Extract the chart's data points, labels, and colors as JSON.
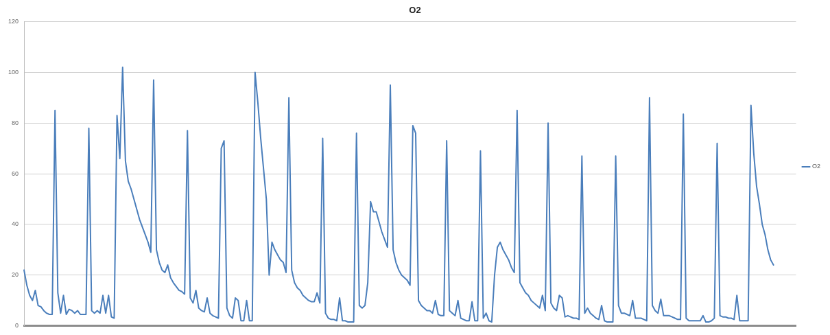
{
  "chart_data": {
    "type": "line",
    "title": "O2",
    "categories": [
      null,
      null,
      null,
      null,
      null,
      null,
      null,
      null,
      null,
      null,
      null,
      null,
      null,
      null,
      null,
      null,
      null,
      null,
      null,
      null,
      null,
      null,
      null,
      null,
      null,
      null,
      null,
      null,
      null,
      null,
      null,
      null,
      null,
      null,
      null,
      null,
      null,
      null,
      null,
      null,
      null,
      null,
      null,
      null,
      null,
      null,
      null,
      null,
      null,
      null,
      null,
      null,
      null,
      null,
      null,
      null,
      null,
      null,
      null,
      null,
      null,
      null,
      null,
      null,
      null,
      null,
      null,
      null,
      null,
      null,
      null,
      null,
      null,
      null,
      null,
      null,
      null,
      null,
      null,
      null,
      null,
      null,
      null,
      null,
      null,
      null,
      null,
      null,
      null,
      null,
      null,
      null,
      null,
      null,
      null,
      null,
      null,
      null,
      null,
      null,
      null,
      null,
      null,
      null,
      null,
      null,
      null,
      null,
      null,
      null,
      null,
      null,
      null,
      null,
      null,
      null,
      null,
      null,
      null,
      null,
      null,
      null,
      null,
      null,
      null,
      null,
      null,
      null,
      null,
      null,
      null,
      null,
      null,
      null,
      null,
      null,
      null,
      null,
      null,
      null,
      null,
      null,
      null,
      null,
      null,
      null,
      null,
      null,
      null,
      null,
      null,
      null,
      null,
      null,
      null,
      null,
      null,
      null,
      null,
      null,
      null,
      null,
      null,
      null,
      null,
      null,
      null,
      null,
      null,
      null,
      null,
      null,
      null,
      null,
      null,
      null,
      null,
      null,
      null,
      null,
      null,
      null,
      null,
      null,
      null,
      null,
      null,
      null,
      null,
      null,
      null,
      null,
      null,
      null,
      null,
      null,
      null,
      null,
      null,
      null,
      null,
      null,
      null,
      null,
      null,
      null,
      null,
      null,
      null,
      null,
      null,
      null,
      null,
      null,
      null,
      null,
      null,
      null,
      null,
      null,
      null,
      null,
      null,
      null,
      null,
      null,
      null,
      null,
      null,
      null,
      null,
      null,
      null,
      null,
      null,
      null,
      null,
      null,
      null,
      null,
      null,
      null,
      null,
      null,
      null,
      null,
      null,
      null,
      null,
      null,
      null,
      null,
      null,
      null,
      null,
      null,
      null,
      null,
      null,
      null,
      null,
      null,
      null,
      null,
      null,
      null,
      null,
      null,
      null,
      null,
      null,
      null,
      null,
      null,
      null
    ],
    "series": [
      {
        "name": "O2",
        "color": "#4a7ebb",
        "values": [
          22,
          16,
          12,
          10,
          14,
          8,
          7.5,
          6,
          5,
          4.5,
          4.5,
          85,
          13,
          5,
          12,
          4.5,
          6.5,
          6,
          5,
          6,
          4.5,
          4.5,
          4.5,
          78,
          6,
          5,
          6,
          5,
          12,
          5,
          12,
          3.5,
          3,
          83,
          66,
          102,
          65,
          57,
          54,
          50,
          46,
          42,
          39,
          36,
          33,
          29,
          97,
          30,
          25,
          22,
          21,
          24,
          19,
          17,
          15.5,
          14,
          13.5,
          12.5,
          77,
          11,
          9,
          14,
          7,
          6,
          5.5,
          11,
          5,
          4,
          3.5,
          3,
          70,
          73,
          7,
          4,
          3,
          11,
          10,
          2,
          2,
          10,
          2,
          2,
          100,
          88,
          74,
          62,
          50,
          20,
          33,
          30,
          28,
          26,
          25,
          21,
          90,
          22,
          17,
          15,
          14,
          12,
          11,
          10,
          9.5,
          9.5,
          13,
          9,
          74,
          5,
          3,
          2.5,
          2.5,
          2,
          11,
          2,
          2,
          1.5,
          1.5,
          1.5,
          76,
          8,
          7,
          8,
          17,
          49,
          45,
          45,
          41,
          37,
          34,
          31,
          95,
          30,
          25,
          22,
          20,
          19,
          18,
          16,
          79,
          76,
          10,
          8,
          7,
          6,
          6,
          5,
          10,
          4.5,
          4,
          4,
          73,
          6,
          5,
          4,
          10,
          3,
          2.5,
          2,
          2,
          9.5,
          2,
          2,
          69,
          3,
          5,
          2,
          1.5,
          20,
          31,
          33,
          30,
          28,
          26,
          23,
          21,
          85,
          17,
          15,
          13,
          12,
          10,
          9,
          8,
          7,
          12,
          6,
          80,
          9,
          7,
          6,
          12,
          11,
          3.5,
          4,
          3.5,
          3,
          3,
          2.5,
          67,
          5,
          7,
          5,
          4,
          3,
          2.5,
          8,
          2,
          1.5,
          1.5,
          1.5,
          67,
          8,
          5,
          5,
          4.5,
          4,
          10,
          3,
          3,
          3,
          2.5,
          2,
          90,
          8,
          6,
          5,
          10.5,
          4,
          4,
          4,
          3.5,
          3,
          2.5,
          2.5,
          83.5,
          3,
          2,
          2,
          2,
          2,
          2,
          4,
          1.5,
          1.5,
          2,
          3,
          72,
          4,
          3.5,
          3.5,
          3,
          3,
          2.5,
          12,
          2,
          2,
          2,
          2,
          87,
          68,
          55,
          48,
          40,
          36,
          30,
          26,
          24,
          null,
          null,
          null,
          null,
          null,
          null,
          null,
          null
        ]
      }
    ],
    "ylim": [
      0,
      120
    ],
    "yticks": [
      0,
      20,
      40,
      60,
      80,
      100,
      120
    ],
    "grid": "y",
    "legend": "right",
    "tick_labels": "y",
    "marker": "none",
    "line_style": "solid"
  }
}
